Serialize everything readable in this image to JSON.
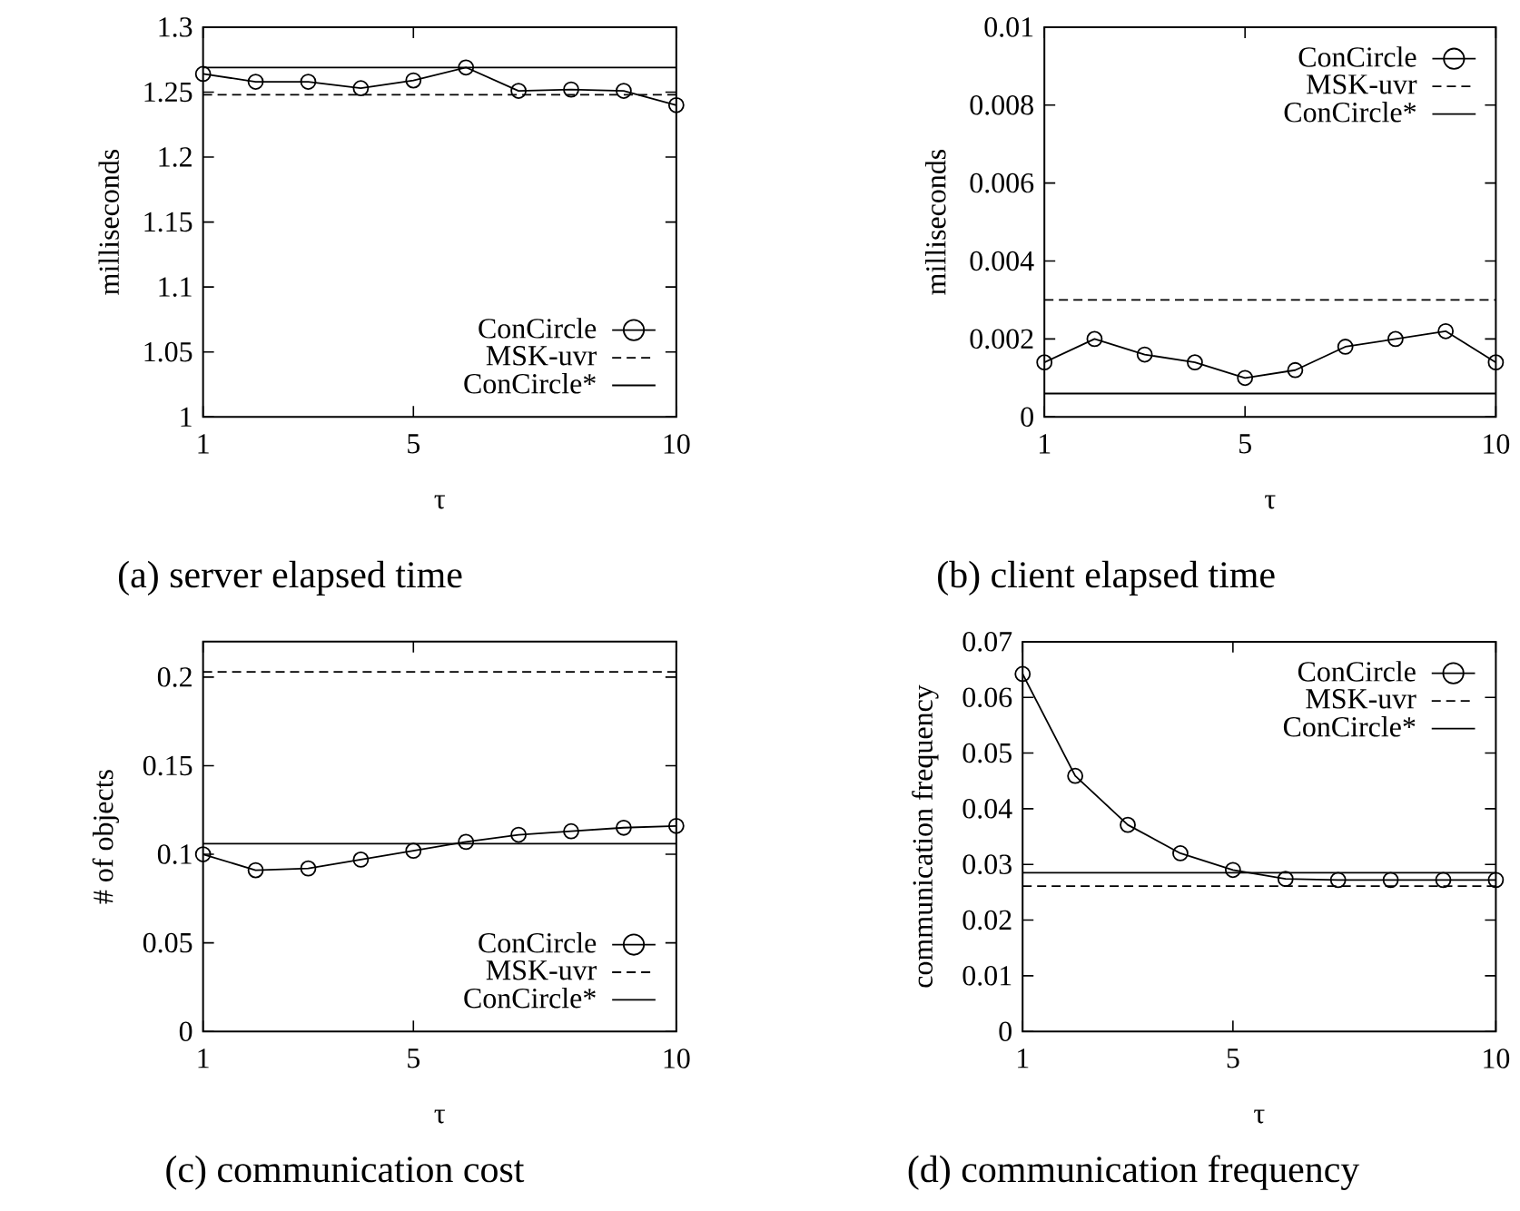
{
  "chart_data": [
    {
      "type": "line",
      "annotations": [
        "(a) server elapsed time"
      ],
      "xlabel": "τ",
      "ylabel": "milliseconds",
      "xlim": [
        1,
        10
      ],
      "xticks": [
        1,
        5,
        10
      ],
      "ylim": [
        1,
        1.3
      ],
      "yticks": [
        1,
        {
          "value": 1.05,
          "label": "1.05"
        },
        {
          "value": 1.1,
          "label": "1.1"
        },
        {
          "value": 1.15,
          "label": "1.15"
        },
        {
          "value": 1.2,
          "label": "1.2"
        },
        {
          "value": 1.25,
          "label": "1.25"
        },
        {
          "value": 1.3,
          "label": "1.3"
        }
      ],
      "legend": "bottom right",
      "x": [
        1,
        2,
        3,
        4,
        5,
        6,
        7,
        8,
        9,
        10
      ],
      "series": [
        {
          "name": "ConCircle",
          "color": "#000000",
          "marker": "circle",
          "line_style": "solid",
          "values": [
            1.264,
            1.258,
            1.258,
            1.253,
            1.259,
            1.269,
            1.251,
            1.252,
            1.251,
            1.24
          ]
        },
        {
          "name": "MSK-uvr",
          "color": "#000000",
          "marker": "none",
          "line_style": "dashed",
          "values": [
            1.248,
            1.248,
            1.248,
            1.248,
            1.248,
            1.248,
            1.248,
            1.248,
            1.248,
            1.248
          ]
        },
        {
          "name": "ConCircle*",
          "color": "#000000",
          "marker": "none",
          "line_style": "solid",
          "values": [
            1.269,
            1.269,
            1.269,
            1.269,
            1.269,
            1.269,
            1.269,
            1.269,
            1.269,
            1.269
          ]
        }
      ]
    },
    {
      "type": "line",
      "annotations": [
        "(b) client elapsed time"
      ],
      "xlabel": "τ",
      "ylabel": "milliseconds",
      "xlim": [
        1,
        10
      ],
      "xticks": [
        1,
        5,
        10
      ],
      "ylim": [
        0,
        0.01
      ],
      "yticks": [
        0,
        {
          "value": 0.002,
          "label": "0.002"
        },
        {
          "value": 0.004,
          "label": "0.004"
        },
        {
          "value": 0.006,
          "label": "0.006"
        },
        {
          "value": 0.008,
          "label": "0.008"
        },
        {
          "value": 0.01,
          "label": "0.01"
        }
      ],
      "legend": "top right",
      "x": [
        1,
        2,
        3,
        4,
        5,
        6,
        7,
        8,
        9,
        10
      ],
      "series": [
        {
          "name": "ConCircle",
          "color": "#000000",
          "marker": "circle",
          "line_style": "solid",
          "values": [
            0.0014,
            0.002,
            0.0016,
            0.0014,
            0.001,
            0.0012,
            0.0018,
            0.002,
            0.0022,
            0.0014
          ]
        },
        {
          "name": "MSK-uvr",
          "color": "#000000",
          "marker": "none",
          "line_style": "dashed",
          "values": [
            0.003,
            0.003,
            0.003,
            0.003,
            0.003,
            0.003,
            0.003,
            0.003,
            0.003,
            0.003
          ]
        },
        {
          "name": "ConCircle*",
          "color": "#000000",
          "marker": "none",
          "line_style": "solid",
          "values": [
            0.0006,
            0.0006,
            0.0006,
            0.0006,
            0.0006,
            0.0006,
            0.0006,
            0.0006,
            0.0006,
            0.0006
          ]
        }
      ]
    },
    {
      "type": "line",
      "annotations": [
        "(c) communication cost"
      ],
      "xlabel": "τ",
      "ylabel": "# of objects",
      "xlim": [
        1,
        10
      ],
      "xticks": [
        1,
        5,
        10
      ],
      "ylim": [
        0,
        0.22
      ],
      "yticks": [
        0,
        {
          "value": 0.05,
          "label": "0.05"
        },
        {
          "value": 0.1,
          "label": "0.1"
        },
        {
          "value": 0.15,
          "label": "0.15"
        },
        {
          "value": 0.2,
          "label": "0.2"
        }
      ],
      "legend": "bottom right",
      "x": [
        1,
        2,
        3,
        4,
        5,
        6,
        7,
        8,
        9,
        10
      ],
      "series": [
        {
          "name": "ConCircle",
          "color": "#000000",
          "marker": "circle",
          "line_style": "solid",
          "values": [
            0.1,
            0.091,
            0.092,
            0.097,
            0.102,
            0.107,
            0.111,
            0.113,
            0.115,
            0.116
          ]
        },
        {
          "name": "MSK-uvr",
          "color": "#000000",
          "marker": "none",
          "line_style": "dashed",
          "values": [
            0.203,
            0.203,
            0.203,
            0.203,
            0.203,
            0.203,
            0.203,
            0.203,
            0.203,
            0.203
          ]
        },
        {
          "name": "ConCircle*",
          "color": "#000000",
          "marker": "none",
          "line_style": "solid",
          "values": [
            0.106,
            0.106,
            0.106,
            0.106,
            0.106,
            0.106,
            0.106,
            0.106,
            0.106,
            0.106
          ]
        }
      ]
    },
    {
      "type": "line",
      "annotations": [
        "(d) communication frequency"
      ],
      "xlabel": "τ",
      "ylabel": "communication frequency",
      "xlim": [
        1,
        10
      ],
      "xticks": [
        1,
        5,
        10
      ],
      "ylim": [
        0,
        0.07
      ],
      "yticks": [
        0,
        {
          "value": 0.01,
          "label": "0.01"
        },
        {
          "value": 0.02,
          "label": "0.02"
        },
        {
          "value": 0.03,
          "label": "0.03"
        },
        {
          "value": 0.04,
          "label": "0.04"
        },
        {
          "value": 0.05,
          "label": "0.05"
        },
        {
          "value": 0.06,
          "label": "0.06"
        },
        {
          "value": 0.07,
          "label": "0.07"
        }
      ],
      "legend": "top right",
      "x": [
        1,
        2,
        3,
        4,
        5,
        6,
        7,
        8,
        9,
        10
      ],
      "series": [
        {
          "name": "ConCircle",
          "color": "#000000",
          "marker": "circle",
          "line_style": "solid",
          "values": [
            0.0642,
            0.0459,
            0.0371,
            0.032,
            0.029,
            0.0274,
            0.0272,
            0.0272,
            0.0272,
            0.0272
          ]
        },
        {
          "name": "MSK-uvr",
          "color": "#000000",
          "marker": "none",
          "line_style": "dashed",
          "values": [
            0.0261,
            0.0261,
            0.0261,
            0.0261,
            0.0261,
            0.0261,
            0.0261,
            0.0261,
            0.0261,
            0.0261
          ]
        },
        {
          "name": "ConCircle*",
          "color": "#000000",
          "marker": "none",
          "line_style": "solid",
          "values": [
            0.0285,
            0.0285,
            0.0285,
            0.0285,
            0.0285,
            0.0285,
            0.0285,
            0.0285,
            0.0285,
            0.0285
          ]
        }
      ]
    }
  ]
}
